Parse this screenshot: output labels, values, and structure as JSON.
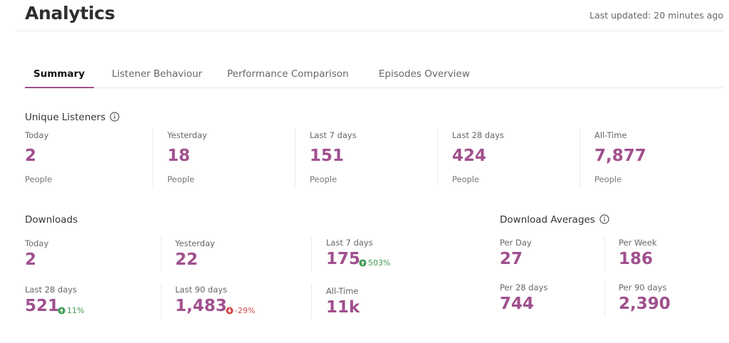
{
  "header": {
    "title": "Analytics",
    "last_updated": "Last updated: 20 minutes ago"
  },
  "tabs": [
    {
      "label": "Summary",
      "active": true
    },
    {
      "label": "Listener Behaviour",
      "active": false
    },
    {
      "label": "Performance Comparison",
      "active": false
    },
    {
      "label": "Episodes Overview",
      "active": false
    }
  ],
  "unique_listeners": {
    "title": "Unique Listeners",
    "icon": "info-icon",
    "stats": [
      {
        "label": "Today",
        "value": "2",
        "unit": "People"
      },
      {
        "label": "Yesterday",
        "value": "18",
        "unit": "People"
      },
      {
        "label": "Last 7 days",
        "value": "151",
        "unit": "People"
      },
      {
        "label": "Last 28 days",
        "value": "424",
        "unit": "People"
      },
      {
        "label": "All-Time",
        "value": "7,877",
        "unit": "People"
      }
    ]
  },
  "downloads": {
    "title": "Downloads",
    "stats": [
      {
        "label": "Today",
        "value": "2"
      },
      {
        "label": "Yesterday",
        "value": "22"
      },
      {
        "label": "Last 7 days",
        "value": "175",
        "change": "503%",
        "direction": "up"
      },
      {
        "label": "Last 28 days",
        "value": "521",
        "change": "11%",
        "direction": "up"
      },
      {
        "label": "Last 90 days",
        "value": "1,483",
        "change": "-29%",
        "direction": "down"
      },
      {
        "label": "All-Time",
        "value": "11k"
      }
    ]
  },
  "download_averages": {
    "title": "Download Averages",
    "icon": "info-icon",
    "stats": [
      {
        "label": "Per Day",
        "value": "27"
      },
      {
        "label": "Per Week",
        "value": "186"
      },
      {
        "label": "Per 28 days",
        "value": "744"
      },
      {
        "label": "Per 90 days",
        "value": "2,390"
      }
    ]
  },
  "colors": {
    "accent": "#a0508e",
    "positive": "#3d9a52",
    "negative": "#d34b4b"
  }
}
